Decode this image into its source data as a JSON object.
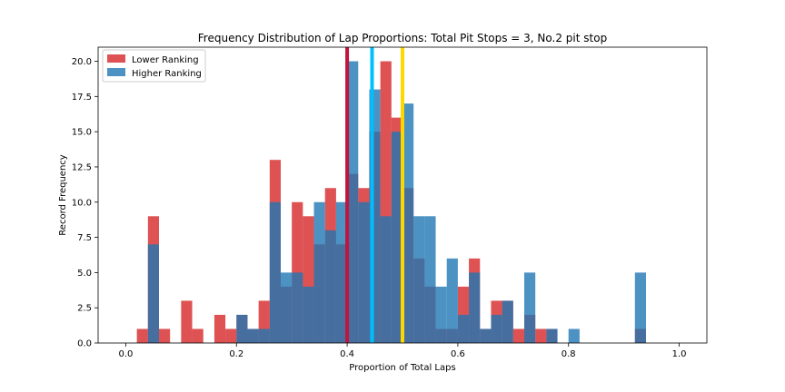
{
  "chart_data": {
    "type": "bar",
    "title": "Frequency Distribution of Lap Proportions: Total Pit Stops = 3, No.2 pit stop",
    "xlabel": "Proportion of Total Laps",
    "ylabel": "Record Frequency",
    "xlim": [
      -0.05,
      1.05
    ],
    "ylim": [
      0,
      21
    ],
    "bin_width": 0.02,
    "x_ticks": [
      "0.0",
      "0.2",
      "0.4",
      "0.6",
      "0.8",
      "1.0"
    ],
    "y_ticks": [
      "0.0",
      "2.5",
      "5.0",
      "7.5",
      "10.0",
      "12.5",
      "15.0",
      "17.5",
      "20.0"
    ],
    "legend_position": "top-left",
    "grid": false,
    "series": [
      {
        "name": "Lower Ranking",
        "color": "#d62728",
        "bins": [
          [
            0.02,
            1
          ],
          [
            0.04,
            9
          ],
          [
            0.06,
            1
          ],
          [
            0.1,
            3
          ],
          [
            0.12,
            1
          ],
          [
            0.16,
            2
          ],
          [
            0.18,
            1
          ],
          [
            0.2,
            2
          ],
          [
            0.22,
            1
          ],
          [
            0.24,
            3
          ],
          [
            0.26,
            13
          ],
          [
            0.28,
            4
          ],
          [
            0.3,
            10
          ],
          [
            0.32,
            9
          ],
          [
            0.34,
            7
          ],
          [
            0.36,
            11
          ],
          [
            0.38,
            7
          ],
          [
            0.4,
            12
          ],
          [
            0.42,
            11
          ],
          [
            0.44,
            15
          ],
          [
            0.46,
            20
          ],
          [
            0.48,
            16
          ],
          [
            0.5,
            11
          ],
          [
            0.52,
            6
          ],
          [
            0.54,
            4
          ],
          [
            0.56,
            1
          ],
          [
            0.58,
            1
          ],
          [
            0.6,
            4
          ],
          [
            0.62,
            6
          ],
          [
            0.64,
            1
          ],
          [
            0.66,
            3
          ],
          [
            0.68,
            3
          ],
          [
            0.7,
            1
          ],
          [
            0.72,
            2
          ],
          [
            0.74,
            1
          ],
          [
            0.76,
            1
          ],
          [
            0.92,
            1
          ]
        ]
      },
      {
        "name": "Higher Ranking",
        "color": "#1f77b4",
        "bins": [
          [
            0.04,
            7
          ],
          [
            0.2,
            2
          ],
          [
            0.22,
            1
          ],
          [
            0.24,
            1
          ],
          [
            0.26,
            10
          ],
          [
            0.28,
            5
          ],
          [
            0.3,
            5
          ],
          [
            0.32,
            4
          ],
          [
            0.34,
            10
          ],
          [
            0.36,
            8
          ],
          [
            0.38,
            10
          ],
          [
            0.4,
            20
          ],
          [
            0.42,
            10
          ],
          [
            0.44,
            18
          ],
          [
            0.46,
            9
          ],
          [
            0.48,
            15
          ],
          [
            0.5,
            17
          ],
          [
            0.52,
            9
          ],
          [
            0.54,
            9
          ],
          [
            0.56,
            4
          ],
          [
            0.58,
            6
          ],
          [
            0.6,
            2
          ],
          [
            0.62,
            5
          ],
          [
            0.64,
            1
          ],
          [
            0.66,
            2
          ],
          [
            0.68,
            3
          ],
          [
            0.72,
            5
          ],
          [
            0.76,
            1
          ],
          [
            0.8,
            1
          ],
          [
            0.92,
            5
          ]
        ]
      }
    ],
    "vertical_lines": [
      {
        "x": 0.4,
        "color": "#c0143c"
      },
      {
        "x": 0.445,
        "color": "#00bfff"
      },
      {
        "x": 0.5,
        "color": "#ffd700"
      }
    ]
  }
}
